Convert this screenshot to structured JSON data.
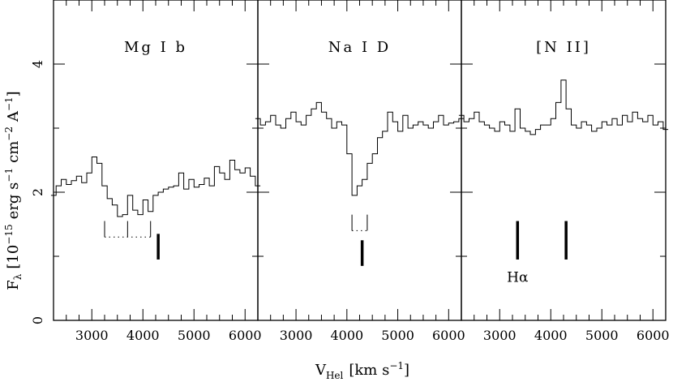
{
  "chart_data": {
    "type": "line",
    "ylabel_main": "F",
    "ylabel_sub": "λ",
    "ylabel_rest": "[10",
    "ylabel_exp1": "−15",
    "ylabel_rest2": "erg s",
    "ylabel_exp2": "−1",
    "ylabel_rest3": "cm",
    "ylabel_exp3": "−2",
    "ylabel_rest4": "A",
    "ylabel_exp4": "−1",
    "ylabel_end": "]",
    "xlabel_main": "V",
    "xlabel_sub": "Hel",
    "xlabel_rest": "[km s",
    "xlabel_exp": "−1",
    "xlabel_end": "]",
    "xlim": [
      2250,
      6250
    ],
    "ylim": [
      0,
      5
    ],
    "xticks": [
      3000,
      4000,
      5000,
      6000
    ],
    "yticks": [
      0,
      2,
      4
    ],
    "panels": [
      {
        "label": "Mg I b",
        "x": [
          2250,
          2350,
          2450,
          2550,
          2650,
          2750,
          2850,
          2950,
          3050,
          3150,
          3250,
          3350,
          3450,
          3550,
          3650,
          3750,
          3850,
          3950,
          4050,
          4150,
          4250,
          4350,
          4450,
          4550,
          4650,
          4750,
          4850,
          4950,
          5050,
          5150,
          5250,
          5350,
          5450,
          5550,
          5650,
          5750,
          5850,
          5950,
          6050,
          6150,
          6250
        ],
        "y": [
          1.95,
          2.1,
          2.2,
          2.12,
          2.18,
          2.25,
          2.15,
          2.3,
          2.55,
          2.45,
          2.1,
          1.9,
          1.8,
          1.62,
          1.65,
          1.95,
          1.72,
          1.65,
          1.88,
          1.7,
          1.95,
          2.0,
          2.05,
          2.08,
          2.1,
          2.3,
          2.05,
          2.2,
          2.08,
          2.12,
          2.22,
          2.1,
          2.4,
          2.3,
          2.2,
          2.5,
          2.35,
          2.3,
          2.38,
          2.25,
          2.1
        ],
        "markers": [
          {
            "v": 3250,
            "y_from": 1.3,
            "y_to": 1.55,
            "style": "thin"
          },
          {
            "v": 3700,
            "y_from": 1.3,
            "y_to": 1.55,
            "style": "thin"
          },
          {
            "v": 4150,
            "y_from": 1.3,
            "y_to": 1.55,
            "style": "thin"
          },
          {
            "v": 4300,
            "y_from": 0.95,
            "y_to": 1.35,
            "style": "thick"
          }
        ],
        "dotted": [
          {
            "v1": 3250,
            "v2": 4150,
            "y": 1.3
          }
        ]
      },
      {
        "label": "Na I D",
        "x": [
          2250,
          2350,
          2450,
          2550,
          2650,
          2750,
          2850,
          2950,
          3050,
          3150,
          3250,
          3350,
          3450,
          3550,
          3650,
          3750,
          3850,
          3950,
          4050,
          4150,
          4250,
          4350,
          4450,
          4550,
          4650,
          4750,
          4850,
          4950,
          5050,
          5150,
          5250,
          5350,
          5450,
          5550,
          5650,
          5750,
          5850,
          5950,
          6050,
          6150,
          6250
        ],
        "y": [
          3.15,
          3.05,
          3.1,
          3.2,
          3.05,
          3.0,
          3.15,
          3.25,
          3.1,
          3.05,
          3.2,
          3.3,
          3.4,
          3.25,
          3.15,
          3.0,
          3.1,
          3.05,
          2.6,
          1.95,
          2.1,
          2.2,
          2.45,
          2.6,
          2.85,
          2.95,
          3.25,
          3.1,
          2.95,
          3.2,
          3.0,
          3.05,
          3.1,
          3.05,
          3.0,
          3.1,
          3.2,
          3.05,
          3.08,
          3.1,
          3.15
        ],
        "markers": [
          {
            "v": 4100,
            "y_from": 1.4,
            "y_to": 1.65,
            "style": "thin"
          },
          {
            "v": 4400,
            "y_from": 1.4,
            "y_to": 1.65,
            "style": "thin"
          },
          {
            "v": 4300,
            "y_from": 0.85,
            "y_to": 1.25,
            "style": "thick"
          }
        ],
        "dotted": [
          {
            "v1": 4100,
            "v2": 4400,
            "y": 1.4
          }
        ]
      },
      {
        "label": "[N II]",
        "x": [
          2250,
          2350,
          2450,
          2550,
          2650,
          2750,
          2850,
          2950,
          3050,
          3150,
          3250,
          3350,
          3450,
          3550,
          3650,
          3750,
          3850,
          3950,
          4050,
          4150,
          4250,
          4350,
          4450,
          4550,
          4650,
          4750,
          4850,
          4950,
          5050,
          5150,
          5250,
          5350,
          5450,
          5550,
          5650,
          5750,
          5850,
          5950,
          6050,
          6150,
          6250
        ],
        "y": [
          3.2,
          3.1,
          3.15,
          3.25,
          3.1,
          3.05,
          3.0,
          2.95,
          3.1,
          3.05,
          2.95,
          3.3,
          3.0,
          2.95,
          2.9,
          2.98,
          3.05,
          3.05,
          3.15,
          3.4,
          3.75,
          3.3,
          3.05,
          3.0,
          3.1,
          3.05,
          2.95,
          3.0,
          3.1,
          3.05,
          3.15,
          3.05,
          3.2,
          3.1,
          3.25,
          3.15,
          3.1,
          3.2,
          3.05,
          3.1,
          2.98
        ],
        "markers": [
          {
            "v": 3350,
            "y_from": 0.95,
            "y_to": 1.55,
            "style": "thick"
          },
          {
            "v": 4300,
            "y_from": 0.95,
            "y_to": 1.55,
            "style": "thick"
          }
        ],
        "dotted": [],
        "annotation": {
          "text": "Hα",
          "v": 3350,
          "y": 0.6
        }
      }
    ]
  }
}
